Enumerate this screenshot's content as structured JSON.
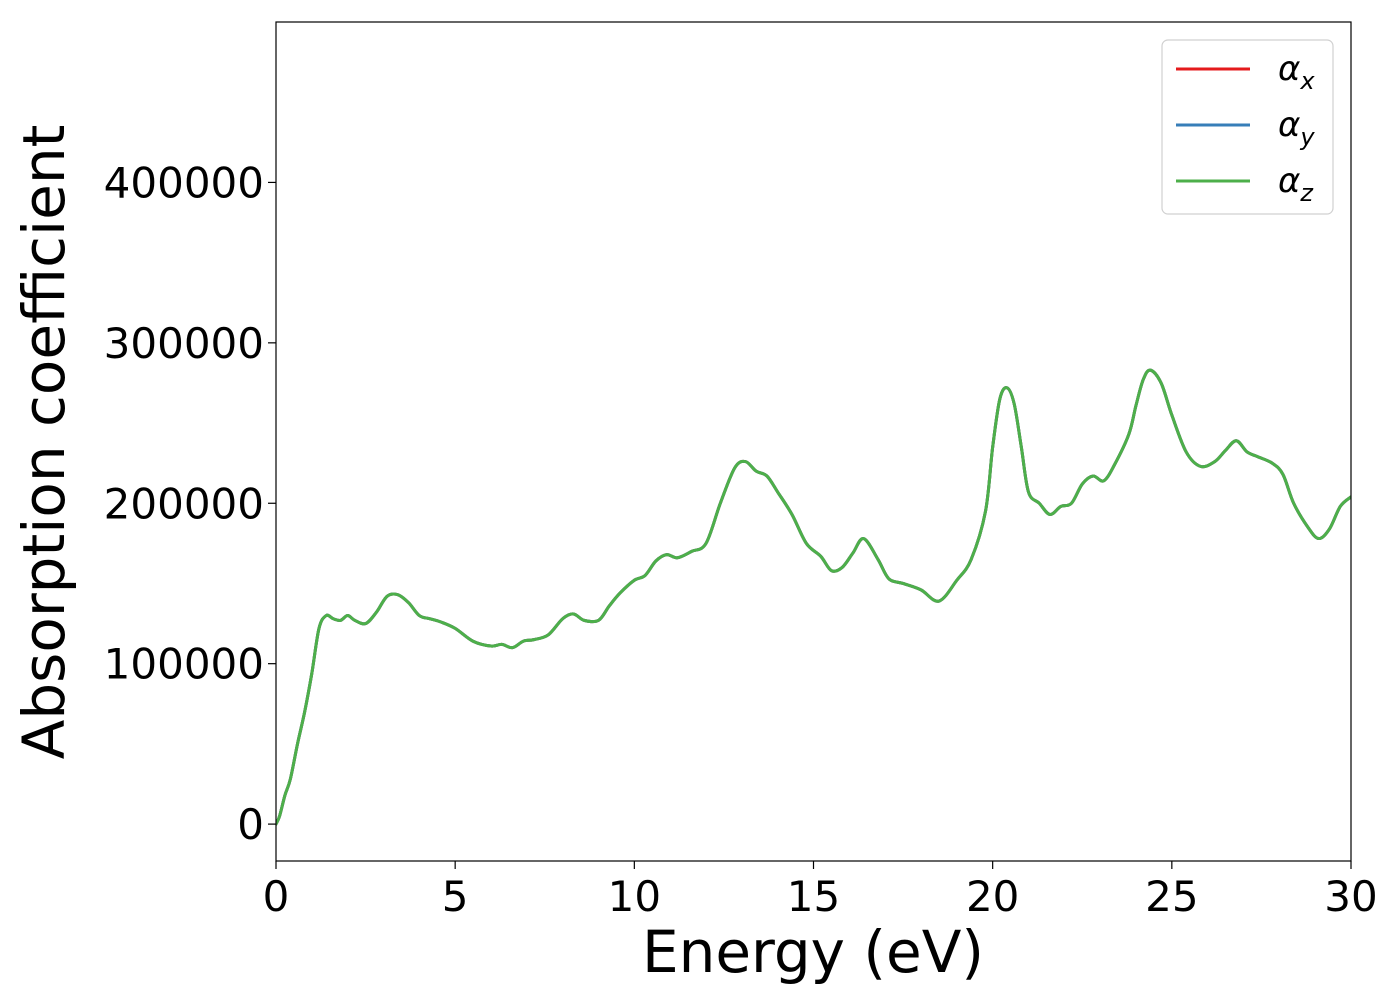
{
  "chart_data": {
    "type": "line",
    "title": "",
    "xlabel": "Energy (eV)",
    "ylabel": "Absorption coefficient",
    "xlim": [
      0,
      30
    ],
    "ylim": [
      -23000,
      500000
    ],
    "xticks": [
      0,
      5,
      10,
      15,
      20,
      25,
      30
    ],
    "xtick_labels": [
      "0",
      "5",
      "10",
      "15",
      "20",
      "25",
      "30"
    ],
    "yticks": [
      0,
      100000,
      200000,
      300000,
      400000
    ],
    "ytick_labels": [
      "0",
      "100000",
      "200000",
      "300000",
      "400000"
    ],
    "grid": false,
    "legend_position": "top-right",
    "legend": [
      {
        "base": "α",
        "sub": "x",
        "color": "#e41a1c"
      },
      {
        "base": "α",
        "sub": "y",
        "color": "#377eb8"
      },
      {
        "base": "α",
        "sub": "z",
        "color": "#4daf4a"
      }
    ],
    "x": [
      0,
      0.1,
      0.25,
      0.4,
      0.6,
      0.8,
      1.0,
      1.2,
      1.4,
      1.6,
      1.8,
      2.0,
      2.2,
      2.5,
      2.8,
      3.1,
      3.4,
      3.7,
      4.0,
      4.3,
      4.6,
      5.0,
      5.5,
      6.0,
      6.3,
      6.6,
      6.9,
      7.2,
      7.6,
      8.0,
      8.3,
      8.6,
      9.0,
      9.3,
      9.6,
      10.0,
      10.3,
      10.6,
      10.9,
      11.2,
      11.6,
      12.0,
      12.4,
      12.8,
      13.1,
      13.4,
      13.7,
      14.0,
      14.4,
      14.8,
      15.2,
      15.5,
      15.8,
      16.1,
      16.4,
      16.8,
      17.1,
      17.5,
      18.0,
      18.5,
      19.0,
      19.4,
      19.8,
      20.0,
      20.2,
      20.4,
      20.6,
      20.8,
      21.0,
      21.3,
      21.6,
      21.9,
      22.2,
      22.5,
      22.8,
      23.1,
      23.4,
      23.8,
      24.0,
      24.2,
      24.4,
      24.7,
      25.0,
      25.4,
      25.8,
      26.2,
      26.5,
      26.8,
      27.1,
      27.4,
      27.8,
      28.1,
      28.4,
      28.8,
      29.1,
      29.4,
      29.7,
      30.0
    ],
    "series": [
      {
        "name": "α_x",
        "color": "#e41a1c",
        "values": [
          0,
          5000,
          18000,
          28000,
          50000,
          70000,
          94000,
          122000,
          130000,
          128000,
          127000,
          130000,
          127000,
          125000,
          132000,
          142000,
          143000,
          138000,
          130000,
          128000,
          126000,
          122000,
          114000,
          111000,
          112000,
          110000,
          114000,
          115000,
          118000,
          128000,
          131000,
          127000,
          127000,
          136000,
          144000,
          152000,
          155000,
          164000,
          168000,
          166000,
          170000,
          175000,
          200000,
          222000,
          226000,
          220000,
          217000,
          207000,
          193000,
          175000,
          167000,
          158000,
          160000,
          169000,
          178000,
          165000,
          153000,
          150000,
          146000,
          139000,
          152000,
          165000,
          195000,
          235000,
          265000,
          272000,
          262000,
          235000,
          207000,
          200000,
          193000,
          198000,
          200000,
          212000,
          217000,
          214000,
          224000,
          243000,
          261000,
          277000,
          283000,
          275000,
          255000,
          232000,
          223000,
          226000,
          233000,
          239000,
          232000,
          229000,
          225000,
          218000,
          200000,
          185000,
          178000,
          184000,
          198000,
          204000
        ]
      },
      {
        "name": "α_y",
        "color": "#377eb8",
        "values": [
          0,
          5000,
          18000,
          28000,
          50000,
          70000,
          94000,
          122000,
          130000,
          128000,
          127000,
          130000,
          127000,
          125000,
          132000,
          142000,
          143000,
          138000,
          130000,
          128000,
          126000,
          122000,
          114000,
          111000,
          112000,
          110000,
          114000,
          115000,
          118000,
          128000,
          131000,
          127000,
          127000,
          136000,
          144000,
          152000,
          155000,
          164000,
          168000,
          166000,
          170000,
          175000,
          200000,
          222000,
          226000,
          220000,
          217000,
          207000,
          193000,
          175000,
          167000,
          158000,
          160000,
          169000,
          178000,
          165000,
          153000,
          150000,
          146000,
          139000,
          152000,
          165000,
          195000,
          235000,
          265000,
          272000,
          262000,
          235000,
          207000,
          200000,
          193000,
          198000,
          200000,
          212000,
          217000,
          214000,
          224000,
          243000,
          261000,
          277000,
          283000,
          275000,
          255000,
          232000,
          223000,
          226000,
          233000,
          239000,
          232000,
          229000,
          225000,
          218000,
          200000,
          185000,
          178000,
          184000,
          198000,
          204000
        ]
      },
      {
        "name": "α_z",
        "color": "#4daf4a",
        "values": [
          0,
          5000,
          18000,
          28000,
          50000,
          70000,
          94000,
          122000,
          130000,
          128000,
          127000,
          130000,
          127000,
          125000,
          132000,
          142000,
          143000,
          138000,
          130000,
          128000,
          126000,
          122000,
          114000,
          111000,
          112000,
          110000,
          114000,
          115000,
          118000,
          128000,
          131000,
          127000,
          127000,
          136000,
          144000,
          152000,
          155000,
          164000,
          168000,
          166000,
          170000,
          175000,
          200000,
          222000,
          226000,
          220000,
          217000,
          207000,
          193000,
          175000,
          167000,
          158000,
          160000,
          169000,
          178000,
          165000,
          153000,
          150000,
          146000,
          139000,
          152000,
          165000,
          195000,
          235000,
          265000,
          272000,
          262000,
          235000,
          207000,
          200000,
          193000,
          198000,
          200000,
          212000,
          217000,
          214000,
          224000,
          243000,
          261000,
          277000,
          283000,
          275000,
          255000,
          232000,
          223000,
          226000,
          233000,
          239000,
          232000,
          229000,
          225000,
          218000,
          200000,
          185000,
          178000,
          184000,
          198000,
          204000
        ]
      }
    ]
  }
}
